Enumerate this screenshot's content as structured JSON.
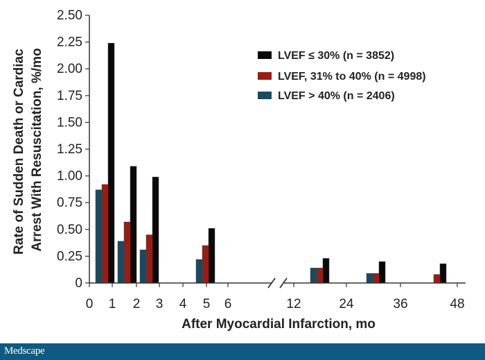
{
  "chart_data": {
    "type": "bar",
    "xlabel": "After Myocardial Infarction, mo",
    "ylabel_lines": [
      "Rate of Sudden Death or Cardiac",
      "Arrest With Resuscitation, %/mo"
    ],
    "ylim": [
      0,
      2.5
    ],
    "y_ticks": [
      "0",
      "0.25",
      "0.50",
      "0.75",
      "1.00",
      "1.25",
      "1.50",
      "1.75",
      "2.00",
      "2.25",
      "2.50"
    ],
    "x_ticks": [
      "0",
      "1",
      "2",
      "3",
      "4",
      "5",
      "6",
      "12",
      "24",
      "36",
      "48"
    ],
    "x_axis_break": "between 6 and 12",
    "legend_position": "top-right",
    "categories": [
      "0-1",
      "1-2",
      "2-3",
      "4-5",
      "12-24",
      "24-36",
      "36-48"
    ],
    "series": [
      {
        "name": "LVEF ≤ 30% (n = 3852)",
        "color": "#0a0a0a",
        "values": [
          2.24,
          1.09,
          0.99,
          0.51,
          0.23,
          0.2,
          0.18
        ]
      },
      {
        "name": "LVEF, 31% to 40% (n = 4998)",
        "color": "#9b1c12",
        "values": [
          0.92,
          0.57,
          0.45,
          0.35,
          0.14,
          0.09,
          0.08
        ]
      },
      {
        "name": "LVEF > 40% (n = 2406)",
        "color": "#184a62",
        "values": [
          0.87,
          0.39,
          0.31,
          0.22,
          0.14,
          0.09,
          0.0
        ]
      }
    ]
  },
  "footer": {
    "brand": "Medscape",
    "background": "#0e5a82"
  }
}
